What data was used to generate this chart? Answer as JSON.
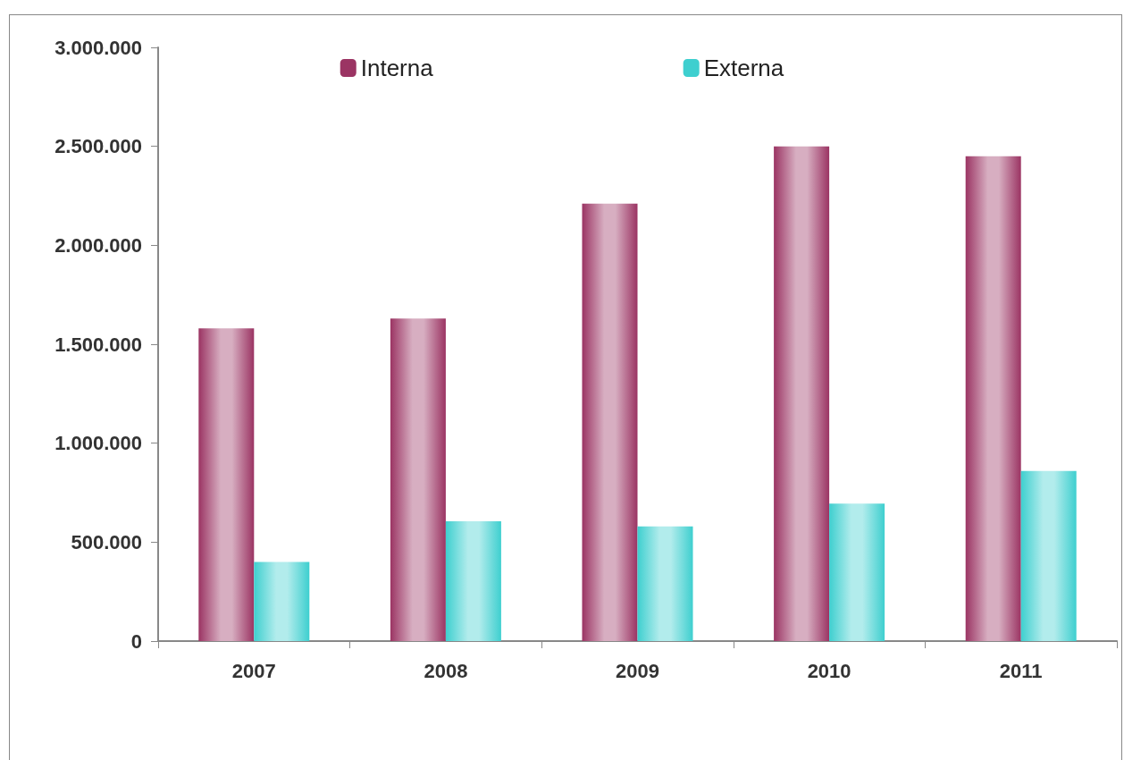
{
  "chart_data": {
    "type": "bar",
    "categories": [
      "2007",
      "2008",
      "2009",
      "2010",
      "2011"
    ],
    "series": [
      {
        "name": "Interna",
        "color": "#9b3463",
        "values": [
          1580000,
          1630000,
          2210000,
          2500000,
          2450000
        ]
      },
      {
        "name": "Externa",
        "color": "#3ecfcf",
        "values": [
          400000,
          605000,
          580000,
          695000,
          860000
        ]
      }
    ],
    "ylim": [
      0,
      3000000
    ],
    "yticks": [
      0,
      {
        "value": 500000,
        "label": "500.000"
      },
      {
        "value": 1000000,
        "label": "1.000.000"
      },
      {
        "value": 1500000,
        "label": "1.500.000"
      },
      {
        "value": 2000000,
        "label": "2.000.000"
      },
      {
        "value": 2500000,
        "label": "2.500.000"
      },
      {
        "value": 3000000,
        "label": "3.000.000"
      }
    ],
    "grid": false,
    "legend": "top"
  }
}
